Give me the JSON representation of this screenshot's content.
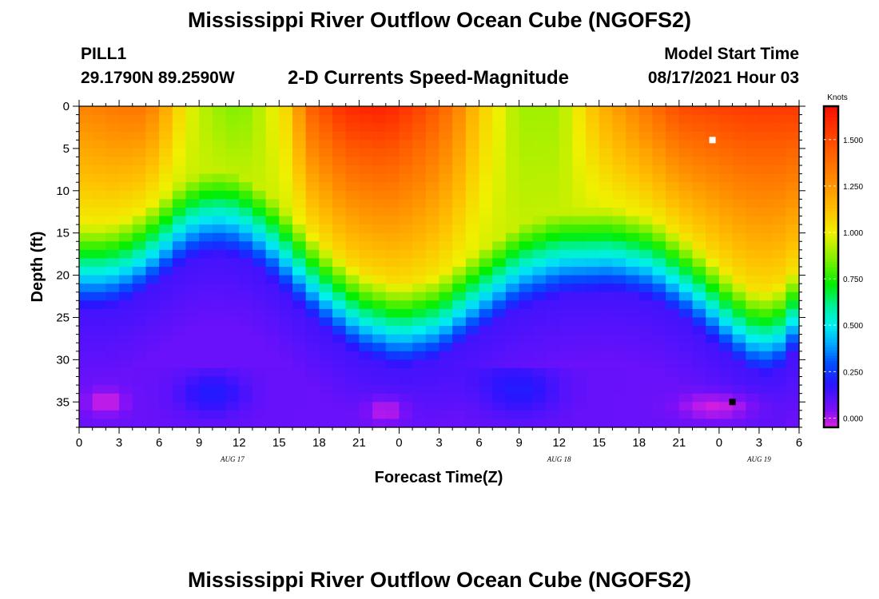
{
  "page": {
    "title_top": "Mississippi River Outflow Ocean Cube (NGOFS2)",
    "title_bottom": "Mississippi River Outflow Ocean Cube (NGOFS2)",
    "station": "PILL1",
    "coords": "29.1790N  89.2590W",
    "subtitle": "2-D Currents Speed-Magnitude",
    "model_start_label": "Model Start Time",
    "model_start_value": "08/17/2021 Hour 03"
  },
  "chart_data": {
    "type": "heatmap",
    "title": "2-D Currents Speed-Magnitude",
    "xlabel": "Forecast Time(Z)",
    "ylabel": "Depth (ft)",
    "x_start_hour": 0,
    "x_end_hour": 54,
    "x_tick_hours": [
      0,
      3,
      6,
      9,
      12,
      15,
      18,
      21,
      24,
      27,
      30,
      33,
      36,
      39,
      42,
      45,
      48,
      51,
      54
    ],
    "x_tick_labels": [
      "0",
      "3",
      "6",
      "9",
      "12",
      "15",
      "18",
      "21",
      "0",
      "3",
      "6",
      "9",
      "12",
      "15",
      "18",
      "21",
      "0",
      "3",
      "6"
    ],
    "date_labels": [
      {
        "text": "AUG  17",
        "hour": 11.5
      },
      {
        "text": "AUG  18",
        "hour": 36
      },
      {
        "text": "AUG  19",
        "hour": 51
      }
    ],
    "ylim": [
      0,
      38
    ],
    "y_ticks": [
      0,
      5,
      10,
      15,
      20,
      25,
      30,
      35
    ],
    "y_tick_labels": [
      "0",
      "5",
      "10",
      "15",
      "20",
      "25",
      "30",
      "35"
    ],
    "colorbar": {
      "unit": "Knots",
      "vmin": -0.05,
      "vmax": 1.68,
      "ticks": [
        0.0,
        0.25,
        0.5,
        0.75,
        1.0,
        1.25,
        1.5
      ],
      "tick_labels": [
        "0.000",
        "0.250",
        "0.500",
        "0.750",
        "1.000",
        "1.250",
        "1.500"
      ],
      "stops": [
        {
          "v": -0.05,
          "color": "#e020e0"
        },
        {
          "v": 0.05,
          "color": "#7a10f8"
        },
        {
          "v": 0.18,
          "color": "#2a14ff"
        },
        {
          "v": 0.3,
          "color": "#0050ff"
        },
        {
          "v": 0.4,
          "color": "#00a8ff"
        },
        {
          "v": 0.5,
          "color": "#00f0f0"
        },
        {
          "v": 0.6,
          "color": "#00f0a0"
        },
        {
          "v": 0.72,
          "color": "#00ef00"
        },
        {
          "v": 0.85,
          "color": "#7af000"
        },
        {
          "v": 1.0,
          "color": "#f0f000"
        },
        {
          "v": 1.12,
          "color": "#ffc000"
        },
        {
          "v": 1.28,
          "color": "#ff8c00"
        },
        {
          "v": 1.45,
          "color": "#ff5a00"
        },
        {
          "v": 1.6,
          "color": "#ff2800"
        },
        {
          "v": 1.68,
          "color": "#f01000"
        }
      ]
    },
    "grid_dx_hours": 1,
    "grid_dy_ft": 1,
    "surface_speed_knots": [
      1.3,
      1.35,
      1.35,
      1.25,
      1.0,
      0.9,
      0.85,
      0.95,
      1.1,
      1.4,
      1.6,
      1.62,
      1.5,
      1.35,
      1.1,
      0.9,
      0.9,
      1.15,
      1.5,
      1.55,
      1.55
    ],
    "surface_speed_hours": [
      0,
      3,
      5,
      6,
      8,
      10,
      12,
      14,
      16,
      17,
      20,
      23,
      26,
      28,
      30,
      33,
      36,
      39,
      45,
      50,
      54
    ],
    "shear_depth_ft": [
      20,
      20,
      19,
      17,
      14.5,
      13.5,
      14,
      16,
      19,
      22,
      25.5,
      27,
      26,
      23,
      20,
      18.5,
      18,
      19,
      22,
      26,
      28,
      27,
      24
    ],
    "shear_depth_hours": [
      0,
      2,
      4,
      6,
      8,
      10,
      12,
      14,
      16,
      18,
      21,
      24,
      27,
      30,
      33,
      36,
      40,
      43,
      46,
      49,
      51,
      53,
      54
    ],
    "min_marker": {
      "hour": 49,
      "depth_ft": 35,
      "color": "#000000"
    },
    "max_marker": {
      "hour": 47.5,
      "depth_ft": 4,
      "color": "#ffffff"
    }
  }
}
